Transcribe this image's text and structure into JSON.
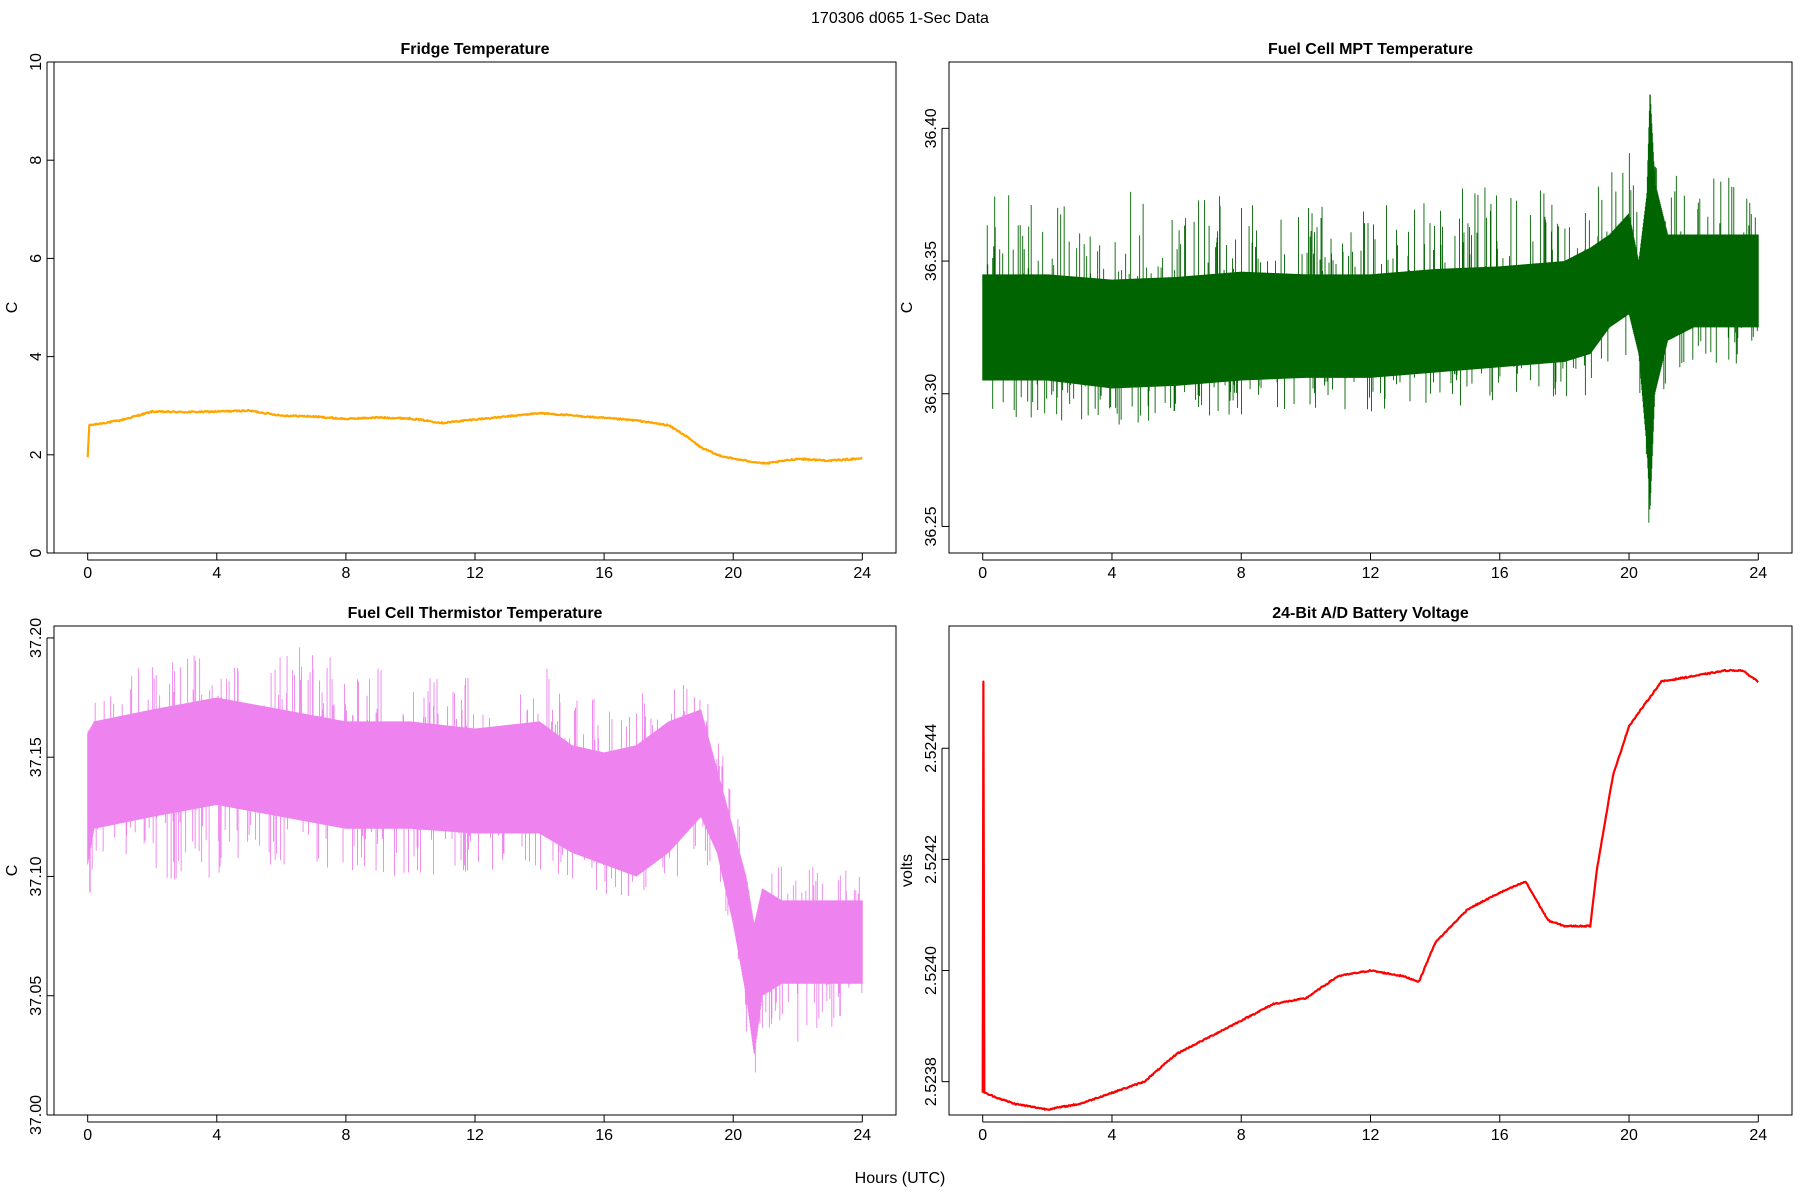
{
  "figure": {
    "suptitle": "170306   d065   1-Sec Data",
    "xlabel": "Hours (UTC)"
  },
  "chart_data": [
    {
      "type": "line",
      "title": "Fridge Temperature",
      "xlabel": "",
      "ylabel": "C",
      "color": "#FFA500",
      "xlim": [
        0,
        24
      ],
      "ylim": [
        0,
        10
      ],
      "xticks": [
        0,
        4,
        8,
        12,
        16,
        20,
        24
      ],
      "xtick_labels": [
        "0",
        "4",
        "8",
        "12",
        "16",
        "20",
        "24"
      ],
      "yticks": [
        0,
        2,
        4,
        6,
        8,
        10
      ],
      "ytick_labels": [
        "0",
        "2",
        "4",
        "6",
        "8",
        "10"
      ],
      "noise": 0.015,
      "series": [
        {
          "name": "Fridge Temperature",
          "x": [
            0,
            0.05,
            1,
            2,
            3,
            4,
            5,
            6,
            7,
            8,
            9,
            10,
            11,
            12,
            13,
            14,
            15,
            16,
            17,
            18,
            18.5,
            19,
            19.5,
            20,
            21,
            22,
            23,
            24
          ],
          "y": [
            1.95,
            2.6,
            2.7,
            2.88,
            2.87,
            2.88,
            2.9,
            2.8,
            2.78,
            2.73,
            2.76,
            2.74,
            2.65,
            2.72,
            2.78,
            2.85,
            2.8,
            2.75,
            2.7,
            2.6,
            2.4,
            2.15,
            2.0,
            1.92,
            1.82,
            1.92,
            1.88,
            1.93
          ]
        }
      ]
    },
    {
      "type": "line",
      "title": "Fuel Cell MPT Temperature",
      "xlabel": "",
      "ylabel": "C",
      "color": "#006400",
      "xlim": [
        0,
        24
      ],
      "ylim": [
        36.24,
        36.425
      ],
      "xticks": [
        0,
        4,
        8,
        12,
        16,
        20,
        24
      ],
      "xtick_labels": [
        "0",
        "4",
        "8",
        "12",
        "16",
        "20",
        "24"
      ],
      "yticks": [
        36.25,
        36.3,
        36.35,
        36.4
      ],
      "ytick_labels": [
        "36.25",
        "36.30",
        "36.35",
        "36.40"
      ],
      "band": {
        "x": [
          0,
          2,
          4,
          6,
          8,
          10,
          12,
          14,
          16,
          18,
          18.8,
          19.4,
          20,
          20.3,
          20.55,
          20.65,
          20.8,
          21.2,
          22,
          23,
          24
        ],
        "low": [
          36.305,
          36.305,
          36.302,
          36.303,
          36.305,
          36.306,
          36.306,
          36.308,
          36.31,
          36.312,
          36.315,
          36.325,
          36.33,
          36.315,
          36.28,
          36.255,
          36.3,
          36.32,
          36.325,
          36.325,
          36.325
        ],
        "high": [
          36.345,
          36.345,
          36.343,
          36.344,
          36.346,
          36.345,
          36.345,
          36.347,
          36.348,
          36.35,
          36.355,
          36.36,
          36.368,
          36.35,
          36.375,
          36.415,
          36.38,
          36.36,
          36.36,
          36.36,
          36.36
        ],
        "spike_low": [
          36.29,
          36.29,
          36.288,
          36.29,
          36.292,
          36.293,
          36.293,
          36.294,
          36.295,
          36.296,
          36.3,
          36.31,
          36.31,
          36.3,
          36.26,
          36.245,
          36.29,
          36.305,
          36.31,
          36.31,
          36.312
        ],
        "spike_high": [
          36.38,
          36.37,
          36.377,
          36.375,
          36.375,
          36.373,
          36.372,
          36.376,
          36.38,
          36.376,
          36.385,
          36.39,
          36.395,
          36.38,
          36.4,
          36.42,
          36.39,
          36.385,
          36.38,
          36.382,
          36.375
        ]
      }
    },
    {
      "type": "line",
      "title": "Fuel Cell Thermistor Temperature",
      "xlabel": "",
      "ylabel": "C",
      "color": "#EE82EE",
      "xlim": [
        0,
        24
      ],
      "ylim": [
        37.0,
        37.205
      ],
      "xticks": [
        0,
        4,
        8,
        12,
        16,
        20,
        24
      ],
      "xtick_labels": [
        "0",
        "4",
        "8",
        "12",
        "16",
        "20",
        "24"
      ],
      "yticks": [
        37.0,
        37.05,
        37.1,
        37.15,
        37.2
      ],
      "ytick_labels": [
        "37.00",
        "37.05",
        "37.10",
        "37.15",
        "37.20"
      ],
      "band": {
        "x": [
          0,
          0.2,
          2,
          4,
          6,
          8,
          10,
          12,
          14,
          15,
          16,
          17,
          18,
          19,
          19.5,
          20,
          20.4,
          20.65,
          20.9,
          21.5,
          22,
          23,
          24
        ],
        "low": [
          37.105,
          37.12,
          37.125,
          37.13,
          37.125,
          37.12,
          37.12,
          37.118,
          37.118,
          37.11,
          37.105,
          37.1,
          37.11,
          37.125,
          37.11,
          37.08,
          37.05,
          37.025,
          37.05,
          37.055,
          37.055,
          37.055,
          37.055
        ],
        "high": [
          37.16,
          37.165,
          37.17,
          37.175,
          37.17,
          37.165,
          37.165,
          37.162,
          37.165,
          37.155,
          37.152,
          37.155,
          37.165,
          37.17,
          37.145,
          37.12,
          37.1,
          37.08,
          37.095,
          37.09,
          37.09,
          37.09,
          37.09
        ],
        "spike_low": [
          37.055,
          37.11,
          37.1,
          37.095,
          37.105,
          37.1,
          37.1,
          37.1,
          37.1,
          37.095,
          37.09,
          37.092,
          37.095,
          37.11,
          37.09,
          37.06,
          37.035,
          37.008,
          37.03,
          37.04,
          37.03,
          37.035,
          37.04
        ],
        "spike_high": [
          37.175,
          37.18,
          37.19,
          37.195,
          37.2,
          37.19,
          37.185,
          37.185,
          37.19,
          37.18,
          37.175,
          37.175,
          37.185,
          37.185,
          37.16,
          37.135,
          37.11,
          37.095,
          37.105,
          37.105,
          37.105,
          37.105,
          37.1
        ]
      }
    },
    {
      "type": "line",
      "title": "24-Bit A/D Battery Voltage",
      "xlabel": "",
      "ylabel": "volts",
      "color": "#FF0000",
      "xlim": [
        0,
        24
      ],
      "ylim": [
        2.52374,
        2.52462
      ],
      "xticks": [
        0,
        4,
        8,
        12,
        16,
        20,
        24
      ],
      "xtick_labels": [
        "0",
        "4",
        "8",
        "12",
        "16",
        "20",
        "24"
      ],
      "yticks": [
        2.5238,
        2.524,
        2.5242,
        2.5244
      ],
      "ytick_labels": [
        "2.5238",
        "2.5240",
        "2.5242",
        "2.5244"
      ],
      "noise": 1.2e-06,
      "series": [
        {
          "name": "Battery Voltage",
          "x": [
            0,
            0.02,
            0.05,
            0.5,
            1,
            2,
            3,
            4,
            5,
            6,
            7,
            8,
            9,
            10,
            11,
            12,
            13,
            13.5,
            14,
            15,
            16,
            16.8,
            17.5,
            18,
            18.8,
            19,
            19.5,
            20,
            21,
            22,
            23,
            23.5,
            24
          ],
          "y": [
            2.52378,
            2.52452,
            2.52378,
            2.52377,
            2.52376,
            2.52375,
            2.52376,
            2.52378,
            2.5238,
            2.52385,
            2.52388,
            2.52391,
            2.52394,
            2.52395,
            2.52399,
            2.524,
            2.52399,
            2.52398,
            2.52405,
            2.52411,
            2.52414,
            2.52416,
            2.52409,
            2.52408,
            2.52408,
            2.52418,
            2.52435,
            2.52444,
            2.52452,
            2.52453,
            2.52454,
            2.52454,
            2.52452
          ]
        }
      ]
    }
  ]
}
